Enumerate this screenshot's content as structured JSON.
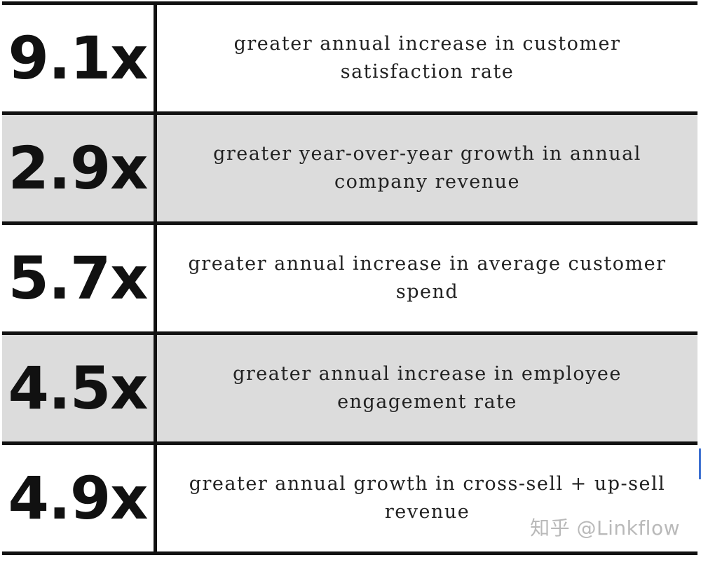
{
  "rows": [
    {
      "value": "9.1x",
      "description": "greater annual increase in customer satisfaction rate"
    },
    {
      "value": "2.9x",
      "description": "greater year-over-year growth in annual company revenue"
    },
    {
      "value": "5.7x",
      "description": "greater annual increase in average customer spend"
    },
    {
      "value": "4.5x",
      "description": "greater annual increase in employee engagement rate"
    },
    {
      "value": "4.9x",
      "description": "greater annual growth in cross-sell + up-sell revenue"
    }
  ],
  "watermark": "知乎 @Linkflow",
  "colors": {
    "shaded_row": "#dcdcdc",
    "plain_row": "#ffffff",
    "border": "#111111",
    "watermark": "#b9b9b9"
  }
}
